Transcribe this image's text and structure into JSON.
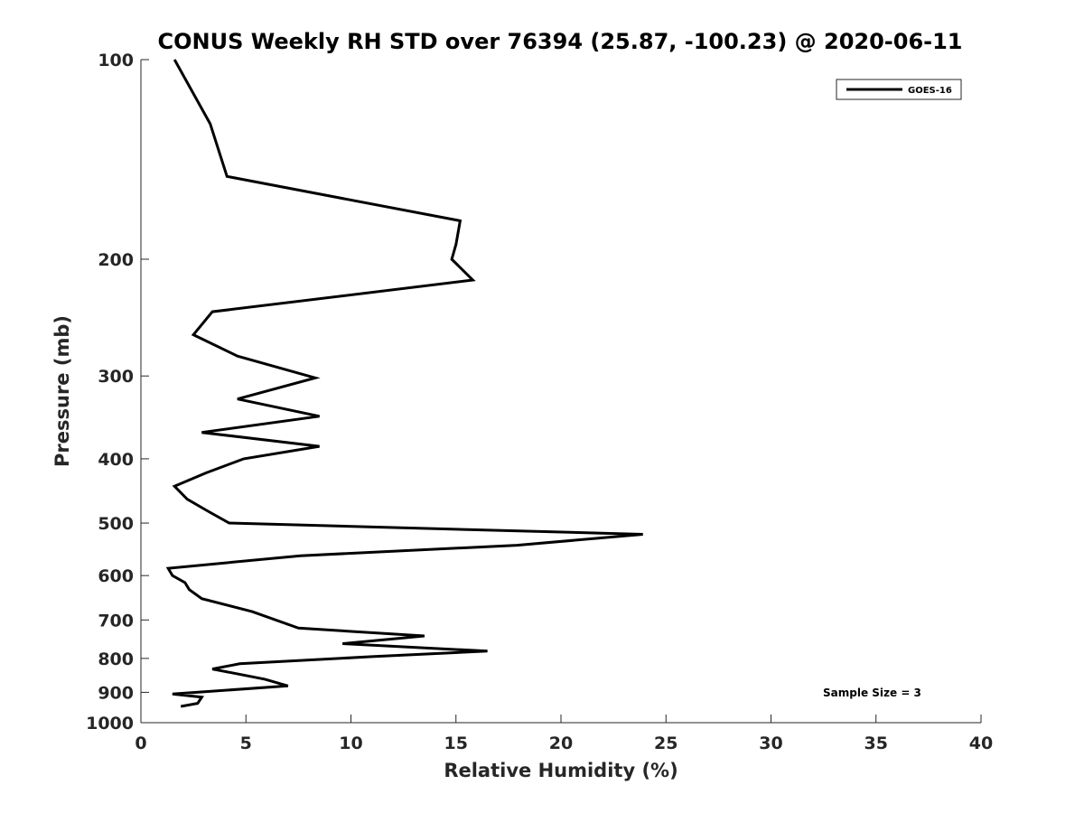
{
  "chart_data": {
    "type": "line",
    "title": "CONUS Weekly RH STD over 76394 (25.87, -100.23) @ 2020-06-11",
    "xlabel": "Relative Humidity (%)",
    "ylabel": "Pressure (mb)",
    "xlim": [
      0,
      40
    ],
    "ylim": [
      100,
      1000
    ],
    "y_scale": "log",
    "y_reversed": true,
    "x_ticks": [
      0,
      5,
      10,
      15,
      20,
      25,
      30,
      35,
      40
    ],
    "y_ticks": [
      100,
      200,
      300,
      400,
      500,
      600,
      700,
      800,
      900,
      1000
    ],
    "grid": false,
    "legend_position": "top-right",
    "annotation": "Sample Size = 3",
    "series": [
      {
        "name": "GOES-16",
        "color": "#000000",
        "points": [
          [
            1.6,
            100
          ],
          [
            3.3,
            125
          ],
          [
            4.1,
            150
          ],
          [
            15.2,
            175
          ],
          [
            15.0,
            190
          ],
          [
            14.8,
            200
          ],
          [
            15.8,
            215
          ],
          [
            3.4,
            240
          ],
          [
            2.5,
            260
          ],
          [
            4.6,
            280
          ],
          [
            8.3,
            302
          ],
          [
            4.6,
            325
          ],
          [
            8.5,
            345
          ],
          [
            2.9,
            365
          ],
          [
            8.5,
            383
          ],
          [
            4.9,
            400
          ],
          [
            3.1,
            420
          ],
          [
            1.6,
            440
          ],
          [
            2.2,
            460
          ],
          [
            3.2,
            480
          ],
          [
            4.2,
            500
          ],
          [
            23.9,
            520
          ],
          [
            17.9,
            540
          ],
          [
            7.6,
            560
          ],
          [
            1.3,
            585
          ],
          [
            1.5,
            600
          ],
          [
            2.1,
            615
          ],
          [
            2.3,
            630
          ],
          [
            2.9,
            650
          ],
          [
            5.3,
            680
          ],
          [
            7.5,
            720
          ],
          [
            13.5,
            740
          ],
          [
            9.6,
            760
          ],
          [
            16.5,
            780
          ],
          [
            11.0,
            795
          ],
          [
            4.7,
            815
          ],
          [
            3.4,
            830
          ],
          [
            5.9,
            860
          ],
          [
            7.0,
            880
          ],
          [
            1.5,
            905
          ],
          [
            2.9,
            915
          ],
          [
            2.7,
            935
          ],
          [
            1.9,
            945
          ]
        ]
      }
    ]
  }
}
